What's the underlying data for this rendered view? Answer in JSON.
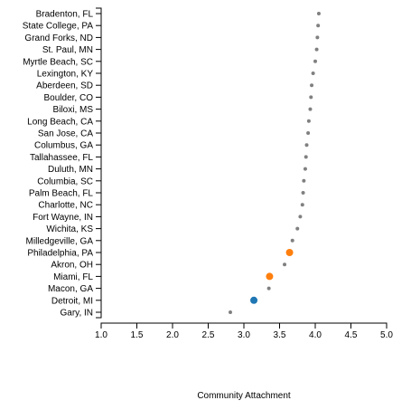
{
  "chart_data": {
    "type": "scatter",
    "title": "",
    "xlabel": "Community Attachment",
    "ylabel": "",
    "xlim": [
      1.0,
      5.0
    ],
    "xticks": [
      "1.0",
      "1.5",
      "2.0",
      "2.5",
      "3.0",
      "3.5",
      "4.0",
      "4.5",
      "5.0"
    ],
    "grid": false,
    "legend": "none",
    "colors": {
      "default": "#808080",
      "orange": "#ff7f0e",
      "blue": "#1f77b4",
      "axis": "#000000"
    },
    "categories": [
      "Bradenton, FL",
      "State College, PA",
      "Grand Forks, ND",
      "St. Paul, MN",
      "Myrtle Beach, SC",
      "Lexington, KY",
      "Aberdeen, SD",
      "Boulder, CO",
      "Biloxi, MS",
      "Long Beach, CA",
      "San Jose, CA",
      "Columbus, GA",
      "Tallahassee, FL",
      "Duluth, MN",
      "Columbia, SC",
      "Palm Beach, FL",
      "Charlotte, NC",
      "Fort Wayne, IN",
      "Wichita, KS",
      "Milledgeville, GA",
      "Philadelphia, PA",
      "Akron, OH",
      "Miami, FL",
      "Macon, GA",
      "Detroit, MI",
      "Gary, IN"
    ],
    "values": [
      4.05,
      4.04,
      4.03,
      4.02,
      4.0,
      3.97,
      3.95,
      3.94,
      3.93,
      3.91,
      3.9,
      3.88,
      3.87,
      3.86,
      3.84,
      3.83,
      3.82,
      3.79,
      3.75,
      3.68,
      3.64,
      3.57,
      3.36,
      3.35,
      3.14,
      2.81
    ],
    "highlight": {
      "Philadelphia, PA": "orange",
      "Miami, FL": "orange",
      "Detroit, MI": "blue"
    }
  }
}
